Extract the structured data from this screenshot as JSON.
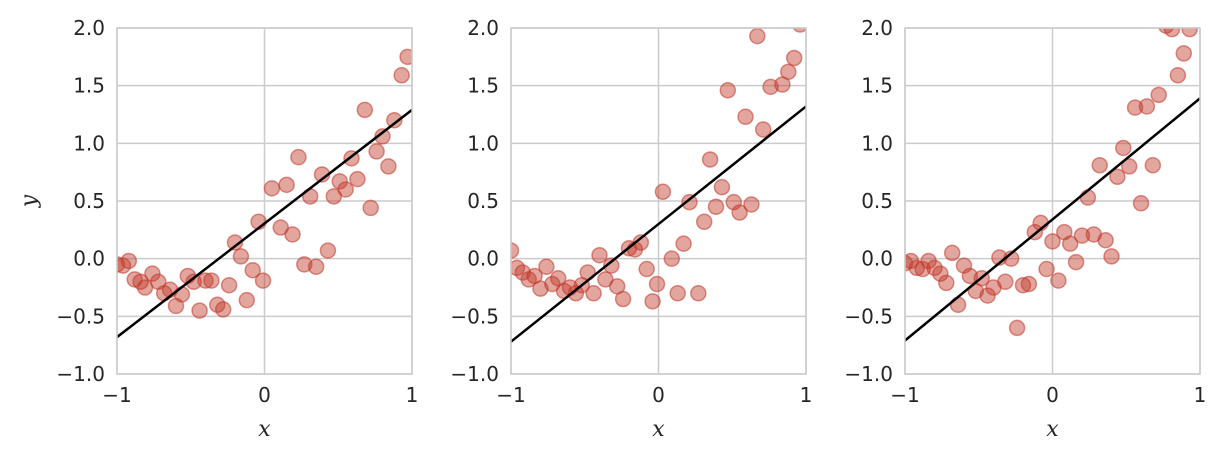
{
  "chart_data": [
    {
      "type": "scatter",
      "xlabel": "x",
      "ylabel": "y",
      "xlim": [
        -1,
        1
      ],
      "ylim": [
        -1,
        2
      ],
      "xticks": [
        "−1",
        "0",
        "1"
      ],
      "yticks": [
        "−1.0",
        "−0.5",
        "0.0",
        "0.5",
        "1.0",
        "1.5",
        "2.0"
      ],
      "grid": true,
      "point_color": "#c0392b",
      "line_color": "#000000",
      "fit_line": {
        "x": [
          -1,
          1
        ],
        "y": [
          -0.68,
          1.29
        ]
      },
      "points": [
        {
          "x": -1.0,
          "y": -0.05
        },
        {
          "x": -0.96,
          "y": -0.06
        },
        {
          "x": -0.92,
          "y": -0.02
        },
        {
          "x": -0.88,
          "y": -0.18
        },
        {
          "x": -0.84,
          "y": -0.2
        },
        {
          "x": -0.81,
          "y": -0.25
        },
        {
          "x": -0.76,
          "y": -0.13
        },
        {
          "x": -0.72,
          "y": -0.2
        },
        {
          "x": -0.68,
          "y": -0.3
        },
        {
          "x": -0.64,
          "y": -0.27
        },
        {
          "x": -0.6,
          "y": -0.41
        },
        {
          "x": -0.56,
          "y": -0.31
        },
        {
          "x": -0.52,
          "y": -0.15
        },
        {
          "x": -0.48,
          "y": -0.2
        },
        {
          "x": -0.44,
          "y": -0.45
        },
        {
          "x": -0.4,
          "y": -0.19
        },
        {
          "x": -0.36,
          "y": -0.19
        },
        {
          "x": -0.32,
          "y": -0.4
        },
        {
          "x": -0.28,
          "y": -0.44
        },
        {
          "x": -0.24,
          "y": -0.23
        },
        {
          "x": -0.2,
          "y": 0.14
        },
        {
          "x": -0.16,
          "y": 0.02
        },
        {
          "x": -0.12,
          "y": -0.36
        },
        {
          "x": -0.08,
          "y": -0.1
        },
        {
          "x": -0.04,
          "y": 0.32
        },
        {
          "x": -0.01,
          "y": -0.19
        },
        {
          "x": 0.05,
          "y": 0.61
        },
        {
          "x": 0.11,
          "y": 0.27
        },
        {
          "x": 0.15,
          "y": 0.64
        },
        {
          "x": 0.19,
          "y": 0.21
        },
        {
          "x": 0.23,
          "y": 0.88
        },
        {
          "x": 0.27,
          "y": -0.05
        },
        {
          "x": 0.31,
          "y": 0.54
        },
        {
          "x": 0.35,
          "y": -0.07
        },
        {
          "x": 0.39,
          "y": 0.73
        },
        {
          "x": 0.43,
          "y": 0.07
        },
        {
          "x": 0.47,
          "y": 0.54
        },
        {
          "x": 0.51,
          "y": 0.67
        },
        {
          "x": 0.55,
          "y": 0.6
        },
        {
          "x": 0.59,
          "y": 0.87
        },
        {
          "x": 0.63,
          "y": 0.69
        },
        {
          "x": 0.68,
          "y": 1.29
        },
        {
          "x": 0.72,
          "y": 0.44
        },
        {
          "x": 0.76,
          "y": 0.93
        },
        {
          "x": 0.8,
          "y": 1.06
        },
        {
          "x": 0.84,
          "y": 0.8
        },
        {
          "x": 0.88,
          "y": 1.2
        },
        {
          "x": 0.93,
          "y": 1.59
        },
        {
          "x": 0.97,
          "y": 1.75
        }
      ]
    },
    {
      "type": "scatter",
      "xlabel": "x",
      "ylabel": "",
      "xlim": [
        -1,
        1
      ],
      "ylim": [
        -1,
        2
      ],
      "xticks": [
        "−1",
        "0",
        "1"
      ],
      "yticks": [
        "−1.0",
        "−0.5",
        "0.0",
        "0.5",
        "1.0",
        "1.5",
        "2.0"
      ],
      "grid": true,
      "point_color": "#c0392b",
      "line_color": "#000000",
      "fit_line": {
        "x": [
          -1,
          1
        ],
        "y": [
          -0.72,
          1.32
        ]
      },
      "points": [
        {
          "x": -1.0,
          "y": 0.07
        },
        {
          "x": -0.96,
          "y": -0.08
        },
        {
          "x": -0.92,
          "y": -0.12
        },
        {
          "x": -0.88,
          "y": -0.18
        },
        {
          "x": -0.84,
          "y": -0.15
        },
        {
          "x": -0.8,
          "y": -0.26
        },
        {
          "x": -0.76,
          "y": -0.07
        },
        {
          "x": -0.72,
          "y": -0.22
        },
        {
          "x": -0.68,
          "y": -0.17
        },
        {
          "x": -0.64,
          "y": -0.28
        },
        {
          "x": -0.6,
          "y": -0.25
        },
        {
          "x": -0.56,
          "y": -0.3
        },
        {
          "x": -0.52,
          "y": -0.23
        },
        {
          "x": -0.48,
          "y": -0.12
        },
        {
          "x": -0.44,
          "y": -0.3
        },
        {
          "x": -0.4,
          "y": 0.03
        },
        {
          "x": -0.36,
          "y": -0.18
        },
        {
          "x": -0.32,
          "y": -0.06
        },
        {
          "x": -0.28,
          "y": -0.24
        },
        {
          "x": -0.24,
          "y": -0.35
        },
        {
          "x": -0.2,
          "y": 0.09
        },
        {
          "x": -0.16,
          "y": 0.08
        },
        {
          "x": -0.12,
          "y": 0.14
        },
        {
          "x": -0.08,
          "y": -0.09
        },
        {
          "x": -0.04,
          "y": -0.37
        },
        {
          "x": -0.01,
          "y": -0.22
        },
        {
          "x": 0.03,
          "y": 0.58
        },
        {
          "x": 0.09,
          "y": 0.0
        },
        {
          "x": 0.13,
          "y": -0.3
        },
        {
          "x": 0.17,
          "y": 0.13
        },
        {
          "x": 0.21,
          "y": 0.49
        },
        {
          "x": 0.27,
          "y": -0.3
        },
        {
          "x": 0.31,
          "y": 0.32
        },
        {
          "x": 0.35,
          "y": 0.86
        },
        {
          "x": 0.39,
          "y": 0.45
        },
        {
          "x": 0.43,
          "y": 0.62
        },
        {
          "x": 0.47,
          "y": 1.46
        },
        {
          "x": 0.51,
          "y": 0.49
        },
        {
          "x": 0.55,
          "y": 0.4
        },
        {
          "x": 0.59,
          "y": 1.23
        },
        {
          "x": 0.63,
          "y": 0.47
        },
        {
          "x": 0.67,
          "y": 1.93
        },
        {
          "x": 0.71,
          "y": 1.12
        },
        {
          "x": 0.76,
          "y": 1.49
        },
        {
          "x": 0.84,
          "y": 1.51
        },
        {
          "x": 0.88,
          "y": 1.62
        },
        {
          "x": 0.92,
          "y": 1.74
        },
        {
          "x": 0.96,
          "y": 2.03
        }
      ]
    },
    {
      "type": "scatter",
      "xlabel": "x",
      "ylabel": "",
      "xlim": [
        -1,
        1
      ],
      "ylim": [
        -1,
        2
      ],
      "xticks": [
        "−1",
        "0",
        "1"
      ],
      "yticks": [
        "−1.0",
        "−0.5",
        "0.0",
        "0.5",
        "1.0",
        "1.5",
        "2.0"
      ],
      "grid": true,
      "point_color": "#c0392b",
      "line_color": "#000000",
      "fit_line": {
        "x": [
          -1,
          1
        ],
        "y": [
          -0.71,
          1.39
        ]
      },
      "points": [
        {
          "x": -1.0,
          "y": -0.04
        },
        {
          "x": -0.96,
          "y": -0.02
        },
        {
          "x": -0.92,
          "y": -0.08
        },
        {
          "x": -0.88,
          "y": -0.09
        },
        {
          "x": -0.84,
          "y": -0.02
        },
        {
          "x": -0.8,
          "y": -0.08
        },
        {
          "x": -0.76,
          "y": -0.13
        },
        {
          "x": -0.72,
          "y": -0.21
        },
        {
          "x": -0.68,
          "y": 0.05
        },
        {
          "x": -0.64,
          "y": -0.4
        },
        {
          "x": -0.6,
          "y": -0.06
        },
        {
          "x": -0.56,
          "y": -0.15
        },
        {
          "x": -0.52,
          "y": -0.28
        },
        {
          "x": -0.48,
          "y": -0.17
        },
        {
          "x": -0.44,
          "y": -0.32
        },
        {
          "x": -0.4,
          "y": -0.25
        },
        {
          "x": -0.36,
          "y": 0.01
        },
        {
          "x": -0.32,
          "y": -0.2
        },
        {
          "x": -0.28,
          "y": 0.0
        },
        {
          "x": -0.24,
          "y": -0.6
        },
        {
          "x": -0.2,
          "y": -0.23
        },
        {
          "x": -0.16,
          "y": -0.22
        },
        {
          "x": -0.12,
          "y": 0.23
        },
        {
          "x": -0.08,
          "y": 0.31
        },
        {
          "x": -0.04,
          "y": -0.09
        },
        {
          "x": 0.0,
          "y": 0.15
        },
        {
          "x": 0.04,
          "y": -0.19
        },
        {
          "x": 0.08,
          "y": 0.23
        },
        {
          "x": 0.12,
          "y": 0.13
        },
        {
          "x": 0.16,
          "y": -0.03
        },
        {
          "x": 0.2,
          "y": 0.2
        },
        {
          "x": 0.24,
          "y": 0.53
        },
        {
          "x": 0.28,
          "y": 0.21
        },
        {
          "x": 0.32,
          "y": 0.81
        },
        {
          "x": 0.36,
          "y": 0.16
        },
        {
          "x": 0.4,
          "y": 0.02
        },
        {
          "x": 0.44,
          "y": 0.71
        },
        {
          "x": 0.48,
          "y": 0.96
        },
        {
          "x": 0.52,
          "y": 0.8
        },
        {
          "x": 0.56,
          "y": 1.31
        },
        {
          "x": 0.6,
          "y": 0.48
        },
        {
          "x": 0.64,
          "y": 1.32
        },
        {
          "x": 0.68,
          "y": 0.81
        },
        {
          "x": 0.72,
          "y": 1.42
        },
        {
          "x": 0.77,
          "y": 2.02
        },
        {
          "x": 0.81,
          "y": 1.99
        },
        {
          "x": 0.85,
          "y": 1.59
        },
        {
          "x": 0.89,
          "y": 1.78
        },
        {
          "x": 0.93,
          "y": 1.99
        }
      ]
    }
  ]
}
